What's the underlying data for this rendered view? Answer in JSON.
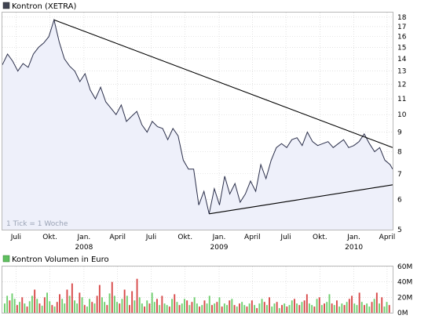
{
  "price_panel": {
    "legend_label": "Kontron (XETRA)",
    "tick_note": "1 Tick = 1 Woche"
  },
  "volume_panel": {
    "legend_label": "Kontron Volumen in Euro"
  },
  "colors": {
    "price_line": "#2b2f4a",
    "price_fill": "#eef0fa",
    "price_legend_box": "#404452",
    "volume_legend_box": "#5fbf5f",
    "volume_up": "#6fcf6f",
    "volume_down": "#d84a4a",
    "grid": "#d0d0d0",
    "trendline": "#000000"
  },
  "chart_data": [
    {
      "type": "line",
      "title": "Kontron (XETRA)",
      "y_scale": "log",
      "ylim": [
        5,
        18.5
      ],
      "xlim": [
        "2007-05-25",
        "2010-04-16"
      ],
      "y_ticks": [
        5,
        6,
        7,
        8,
        9,
        10,
        11,
        12,
        13,
        14,
        15,
        16,
        17,
        18
      ],
      "x_ticks": [
        {
          "label": "Juli",
          "date": "2007-07-01"
        },
        {
          "label": "Okt.",
          "date": "2007-10-01"
        },
        {
          "label": "Jan.",
          "date": "2008-01-01",
          "year": "2008"
        },
        {
          "label": "April",
          "date": "2008-04-01"
        },
        {
          "label": "Juli",
          "date": "2008-07-01"
        },
        {
          "label": "Okt.",
          "date": "2008-10-01"
        },
        {
          "label": "Jan.",
          "date": "2009-01-01",
          "year": "2009"
        },
        {
          "label": "April",
          "date": "2009-04-01"
        },
        {
          "label": "Juli",
          "date": "2009-07-01"
        },
        {
          "label": "Okt.",
          "date": "2009-10-01"
        },
        {
          "label": "Jan.",
          "date": "2010-01-01",
          "year": "2010"
        },
        {
          "label": "April",
          "date": "2010-04-01"
        }
      ],
      "grid": true,
      "series": [
        {
          "x": [
            "2007-05-25",
            "2007-06-08",
            "2007-06-22",
            "2007-07-06",
            "2007-07-20",
            "2007-08-03",
            "2007-08-17",
            "2007-08-31",
            "2007-09-14",
            "2007-09-28",
            "2007-10-12",
            "2007-10-26",
            "2007-11-09",
            "2007-11-23",
            "2007-12-07",
            "2007-12-21",
            "2008-01-04",
            "2008-01-18",
            "2008-02-01",
            "2008-02-15",
            "2008-02-29",
            "2008-03-14",
            "2008-03-28",
            "2008-04-11",
            "2008-04-25",
            "2008-05-09",
            "2008-05-23",
            "2008-06-06",
            "2008-06-20",
            "2008-07-04",
            "2008-07-18",
            "2008-08-01",
            "2008-08-15",
            "2008-08-29",
            "2008-09-12",
            "2008-09-26",
            "2008-10-10",
            "2008-10-24",
            "2008-11-07",
            "2008-11-21",
            "2008-12-05",
            "2008-12-19",
            "2009-01-02",
            "2009-01-16",
            "2009-01-30",
            "2009-02-13",
            "2009-02-27",
            "2009-03-13",
            "2009-03-27",
            "2009-04-10",
            "2009-04-24",
            "2009-05-08",
            "2009-05-22",
            "2009-06-05",
            "2009-06-19",
            "2009-07-03",
            "2009-07-17",
            "2009-07-31",
            "2009-08-14",
            "2009-08-28",
            "2009-09-11",
            "2009-09-25",
            "2009-10-09",
            "2009-10-23",
            "2009-11-06",
            "2009-11-20",
            "2009-12-04",
            "2009-12-18",
            "2010-01-01",
            "2010-01-15",
            "2010-01-29",
            "2010-02-12",
            "2010-02-26",
            "2010-03-12",
            "2010-03-26",
            "2010-04-09",
            "2010-04-16"
          ],
          "y": [
            13.5,
            14.4,
            13.8,
            13.0,
            13.6,
            13.3,
            14.4,
            15.0,
            15.4,
            16.0,
            17.7,
            15.5,
            14.0,
            13.4,
            13.0,
            12.2,
            12.8,
            11.6,
            11.0,
            11.8,
            10.8,
            10.4,
            10.0,
            10.6,
            9.6,
            9.9,
            10.2,
            9.4,
            9.0,
            9.6,
            9.3,
            9.2,
            8.6,
            9.2,
            8.8,
            7.6,
            7.2,
            7.2,
            5.8,
            6.3,
            5.5,
            6.4,
            5.8,
            6.9,
            6.2,
            6.6,
            5.9,
            6.2,
            6.7,
            6.3,
            7.4,
            6.8,
            7.6,
            8.2,
            8.4,
            8.2,
            8.6,
            8.7,
            8.3,
            9.0,
            8.5,
            8.3,
            8.4,
            8.5,
            8.2,
            8.4,
            8.6,
            8.2,
            8.3,
            8.5,
            8.9,
            8.4,
            8.0,
            8.2,
            7.6,
            7.4,
            7.2
          ]
        }
      ],
      "trendlines": [
        {
          "from": {
            "x": "2007-10-12",
            "y": 17.7
          },
          "to": {
            "x": "2010-04-16",
            "y": 8.2
          }
        },
        {
          "from": {
            "x": "2008-12-05",
            "y": 5.5
          },
          "to": {
            "x": "2010-04-16",
            "y": 6.55
          }
        }
      ],
      "annotations": [
        "1 Tick = 1 Woche"
      ]
    },
    {
      "type": "bar",
      "title": "Kontron Volumen in Euro",
      "ylim": [
        0,
        60
      ],
      "y_unit": "M",
      "y_ticks": [
        {
          "label": "0M",
          "value": 0
        },
        {
          "label": "20M",
          "value": 20
        },
        {
          "label": "40M",
          "value": 40
        },
        {
          "label": "60M",
          "value": 60
        }
      ],
      "grid": true,
      "series": [
        {
          "name": "Kontron Volumen in Euro",
          "values": [
            12,
            22,
            16,
            25,
            18,
            10,
            14,
            20,
            12,
            8,
            15,
            22,
            30,
            18,
            12,
            9,
            20,
            26,
            15,
            10,
            8,
            14,
            24,
            18,
            12,
            30,
            22,
            38,
            16,
            12,
            26,
            20,
            10,
            8,
            18,
            14,
            12,
            22,
            36,
            20,
            14,
            10,
            25,
            40,
            22,
            14,
            12,
            18,
            30,
            22,
            10,
            28,
            16,
            44,
            20,
            12,
            8,
            16,
            12,
            26,
            14,
            18,
            10,
            22,
            12,
            10,
            8,
            18,
            24,
            14,
            10,
            12,
            18,
            16,
            10,
            14,
            20,
            12,
            8,
            10,
            16,
            12,
            22,
            10,
            12,
            14,
            20,
            8,
            12,
            10,
            16,
            18,
            10,
            8,
            12,
            14,
            10,
            8,
            12,
            16,
            10,
            6,
            12,
            18,
            14,
            10,
            20,
            8,
            12,
            14,
            6,
            10,
            12,
            8,
            10,
            16,
            18,
            12,
            10,
            14,
            16,
            24,
            12,
            10,
            8,
            18,
            20,
            10,
            12,
            14,
            24,
            12,
            10,
            16,
            8,
            12,
            10,
            14,
            18,
            22,
            12,
            10,
            26,
            14,
            10,
            12,
            8,
            14,
            18,
            26,
            12,
            20,
            8,
            14,
            10
          ],
          "up": [
            1,
            1,
            0,
            1,
            1,
            0,
            1,
            0,
            1,
            0,
            1,
            1,
            0,
            1,
            0,
            1,
            0,
            1,
            1,
            0,
            1,
            0,
            0,
            1,
            1,
            0,
            1,
            0,
            1,
            1,
            0,
            1,
            0,
            1,
            1,
            0,
            1,
            0,
            0,
            1,
            1,
            0,
            1,
            0,
            1,
            1,
            0,
            1,
            0,
            1,
            0,
            0,
            1,
            0,
            1,
            1,
            0,
            1,
            0,
            1,
            1,
            0,
            1,
            0,
            1,
            1,
            0,
            1,
            0,
            1,
            0,
            1,
            1,
            0,
            1,
            0,
            1,
            1,
            0,
            1,
            0,
            1,
            1,
            0,
            1,
            0,
            1,
            0,
            1,
            1,
            0,
            1,
            0,
            1,
            0,
            1,
            1,
            0,
            1,
            0,
            1,
            0,
            1,
            1,
            0,
            1,
            0,
            1,
            1,
            0,
            1,
            0,
            1,
            0,
            1,
            1,
            0,
            1,
            0,
            1,
            0,
            0,
            1,
            1,
            0,
            1,
            0,
            1,
            0,
            1,
            1,
            0,
            1,
            0,
            1,
            1,
            0,
            1,
            0,
            0,
            1,
            1,
            0,
            1,
            0,
            1,
            1,
            0,
            1,
            0,
            1,
            0,
            1,
            1,
            0
          ]
        }
      ]
    }
  ]
}
